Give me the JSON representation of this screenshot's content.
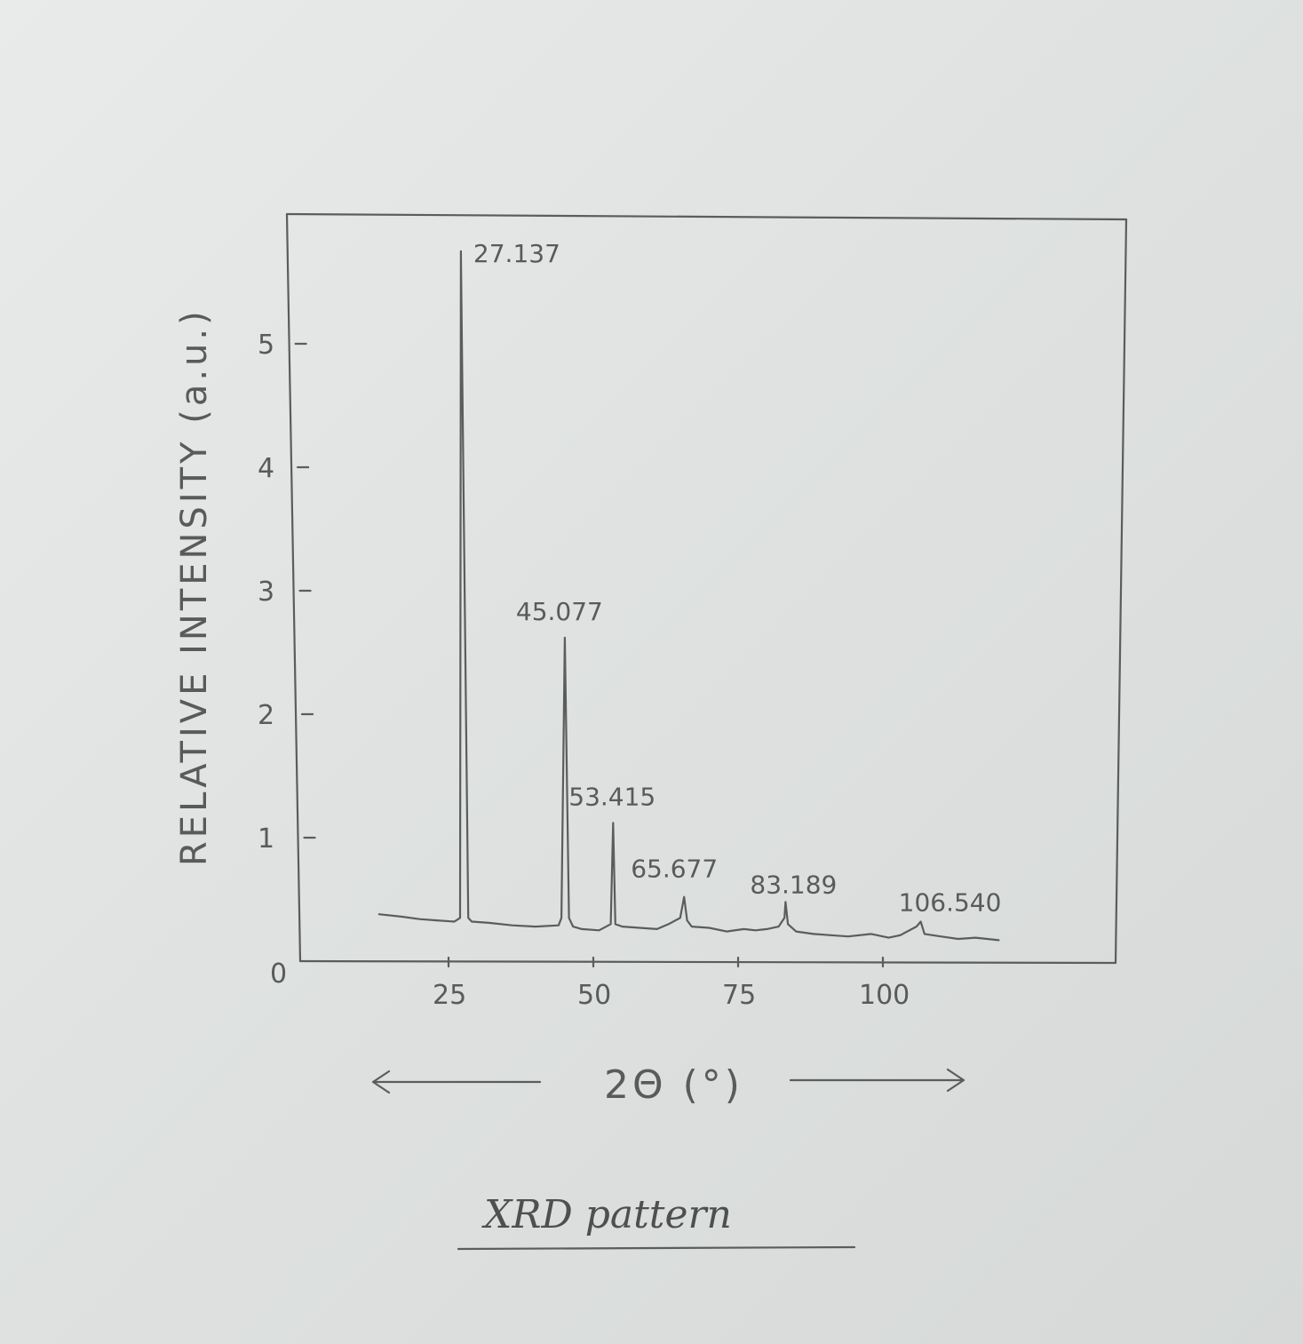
{
  "chart_data": {
    "type": "line",
    "ylabel": "RELATIVE   INTENSITY (a.u.)",
    "xlabel": "2Θ (°)",
    "xticks": [
      25,
      50,
      75,
      100
    ],
    "yticks": [
      1,
      2,
      3,
      4,
      5
    ],
    "origin_label": "0",
    "xlim": [
      0,
      125
    ],
    "ylim": [
      0,
      5.8
    ],
    "series": [
      {
        "x": [
          13,
          17,
          20,
          23,
          26,
          27.0,
          27.137,
          28.4,
          29,
          32,
          36,
          40,
          44,
          44.5,
          45.077,
          45.8,
          46.5,
          48,
          51,
          53.0,
          53.415,
          53.8,
          55,
          58,
          61,
          63,
          65.0,
          65.677,
          66.2,
          67,
          70,
          73,
          76,
          78,
          80,
          82,
          83.0,
          83.189,
          83.6,
          85,
          88,
          91,
          94,
          98,
          101,
          103,
          105.8,
          106.54,
          107.2,
          110,
          113,
          116,
          120
        ],
        "y": [
          0.38,
          0.36,
          0.34,
          0.33,
          0.32,
          0.35,
          5.75,
          0.35,
          0.32,
          0.31,
          0.29,
          0.28,
          0.29,
          0.35,
          2.62,
          0.35,
          0.28,
          0.26,
          0.25,
          0.3,
          1.12,
          0.3,
          0.28,
          0.27,
          0.26,
          0.3,
          0.35,
          0.52,
          0.33,
          0.28,
          0.27,
          0.24,
          0.26,
          0.25,
          0.26,
          0.28,
          0.35,
          0.48,
          0.3,
          0.24,
          0.22,
          0.21,
          0.2,
          0.22,
          0.19,
          0.21,
          0.28,
          0.32,
          0.22,
          0.2,
          0.18,
          0.19,
          0.17
        ]
      }
    ],
    "annotations": [
      {
        "x": 27.137,
        "y": 5.75,
        "label": "27.137"
      },
      {
        "x": 45.077,
        "y": 2.62,
        "label": "45.077"
      },
      {
        "x": 53.415,
        "y": 1.12,
        "label": "53.415"
      },
      {
        "x": 65.677,
        "y": 0.52,
        "label": "65.677"
      },
      {
        "x": 83.189,
        "y": 0.48,
        "label": "83.189"
      },
      {
        "x": 106.54,
        "y": 0.32,
        "label": "106.540"
      }
    ]
  },
  "caption": "XRD pattern"
}
